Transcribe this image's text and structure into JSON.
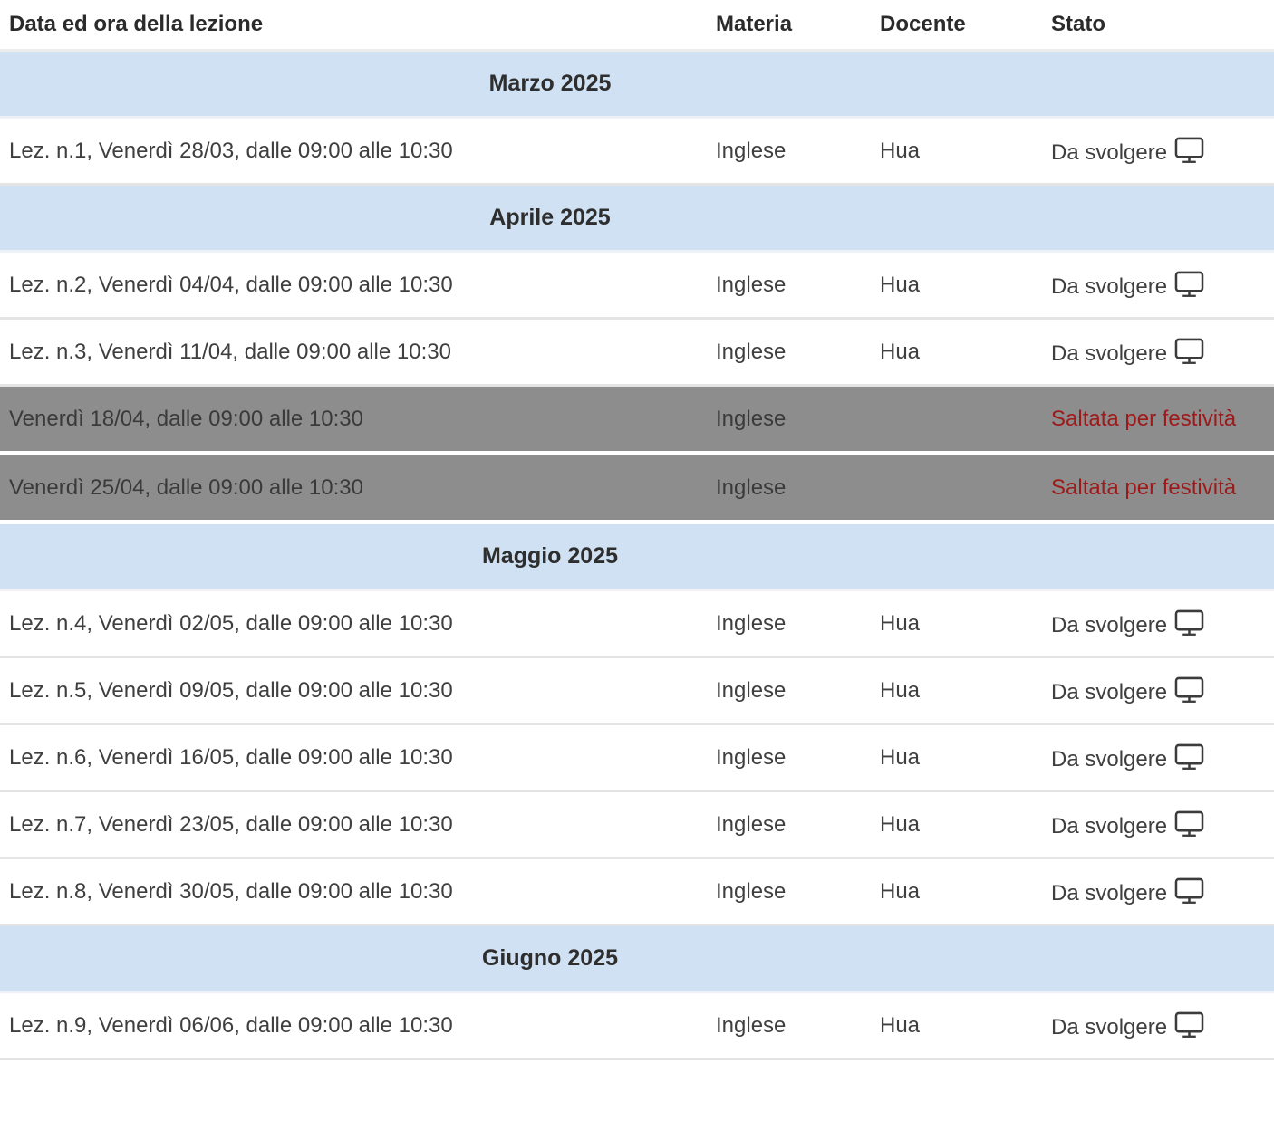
{
  "table": {
    "columns": {
      "date": "Data ed ora della lezione",
      "subject": "Materia",
      "teacher": "Docente",
      "status": "Stato"
    },
    "colors": {
      "month_row_bg": "#cfe1f2",
      "skipped_row_bg": "#8d8d8d",
      "skipped_status_text": "#9e1a1a",
      "row_text": "#3f3f3f"
    },
    "status_icon": "monitor-icon",
    "rows": [
      {
        "type": "month",
        "label": "Marzo 2025"
      },
      {
        "type": "lesson",
        "date": "Lez. n.1, Venerdì 28/03, dalle 09:00 alle 10:30",
        "materia": "Inglese",
        "docente": "Hua",
        "stato": "Da svolgere",
        "icon": "monitor"
      },
      {
        "type": "month",
        "label": "Aprile 2025"
      },
      {
        "type": "lesson",
        "date": "Lez. n.2, Venerdì 04/04, dalle 09:00 alle 10:30",
        "materia": "Inglese",
        "docente": "Hua",
        "stato": "Da svolgere",
        "icon": "monitor"
      },
      {
        "type": "lesson",
        "date": "Lez. n.3, Venerdì 11/04, dalle 09:00 alle 10:30",
        "materia": "Inglese",
        "docente": "Hua",
        "stato": "Da svolgere",
        "icon": "monitor"
      },
      {
        "type": "skipped",
        "date": "Venerdì 18/04, dalle 09:00 alle 10:30",
        "materia": "Inglese",
        "docente": "",
        "stato": "Saltata per festività"
      },
      {
        "type": "skipped",
        "date": "Venerdì 25/04, dalle 09:00 alle 10:30",
        "materia": "Inglese",
        "docente": "",
        "stato": "Saltata per festività"
      },
      {
        "type": "month",
        "label": "Maggio 2025"
      },
      {
        "type": "lesson",
        "date": "Lez. n.4, Venerdì 02/05, dalle 09:00 alle 10:30",
        "materia": "Inglese",
        "docente": "Hua",
        "stato": "Da svolgere",
        "icon": "monitor"
      },
      {
        "type": "lesson",
        "date": "Lez. n.5, Venerdì 09/05, dalle 09:00 alle 10:30",
        "materia": "Inglese",
        "docente": "Hua",
        "stato": "Da svolgere",
        "icon": "monitor"
      },
      {
        "type": "lesson",
        "date": "Lez. n.6, Venerdì 16/05, dalle 09:00 alle 10:30",
        "materia": "Inglese",
        "docente": "Hua",
        "stato": "Da svolgere",
        "icon": "monitor"
      },
      {
        "type": "lesson",
        "date": "Lez. n.7, Venerdì 23/05, dalle 09:00 alle 10:30",
        "materia": "Inglese",
        "docente": "Hua",
        "stato": "Da svolgere",
        "icon": "monitor"
      },
      {
        "type": "lesson",
        "date": "Lez. n.8, Venerdì 30/05, dalle 09:00 alle 10:30",
        "materia": "Inglese",
        "docente": "Hua",
        "stato": "Da svolgere",
        "icon": "monitor"
      },
      {
        "type": "month",
        "label": "Giugno 2025"
      },
      {
        "type": "lesson",
        "date": "Lez. n.9, Venerdì 06/06, dalle 09:00 alle 10:30",
        "materia": "Inglese",
        "docente": "Hua",
        "stato": "Da svolgere",
        "icon": "monitor"
      }
    ]
  }
}
